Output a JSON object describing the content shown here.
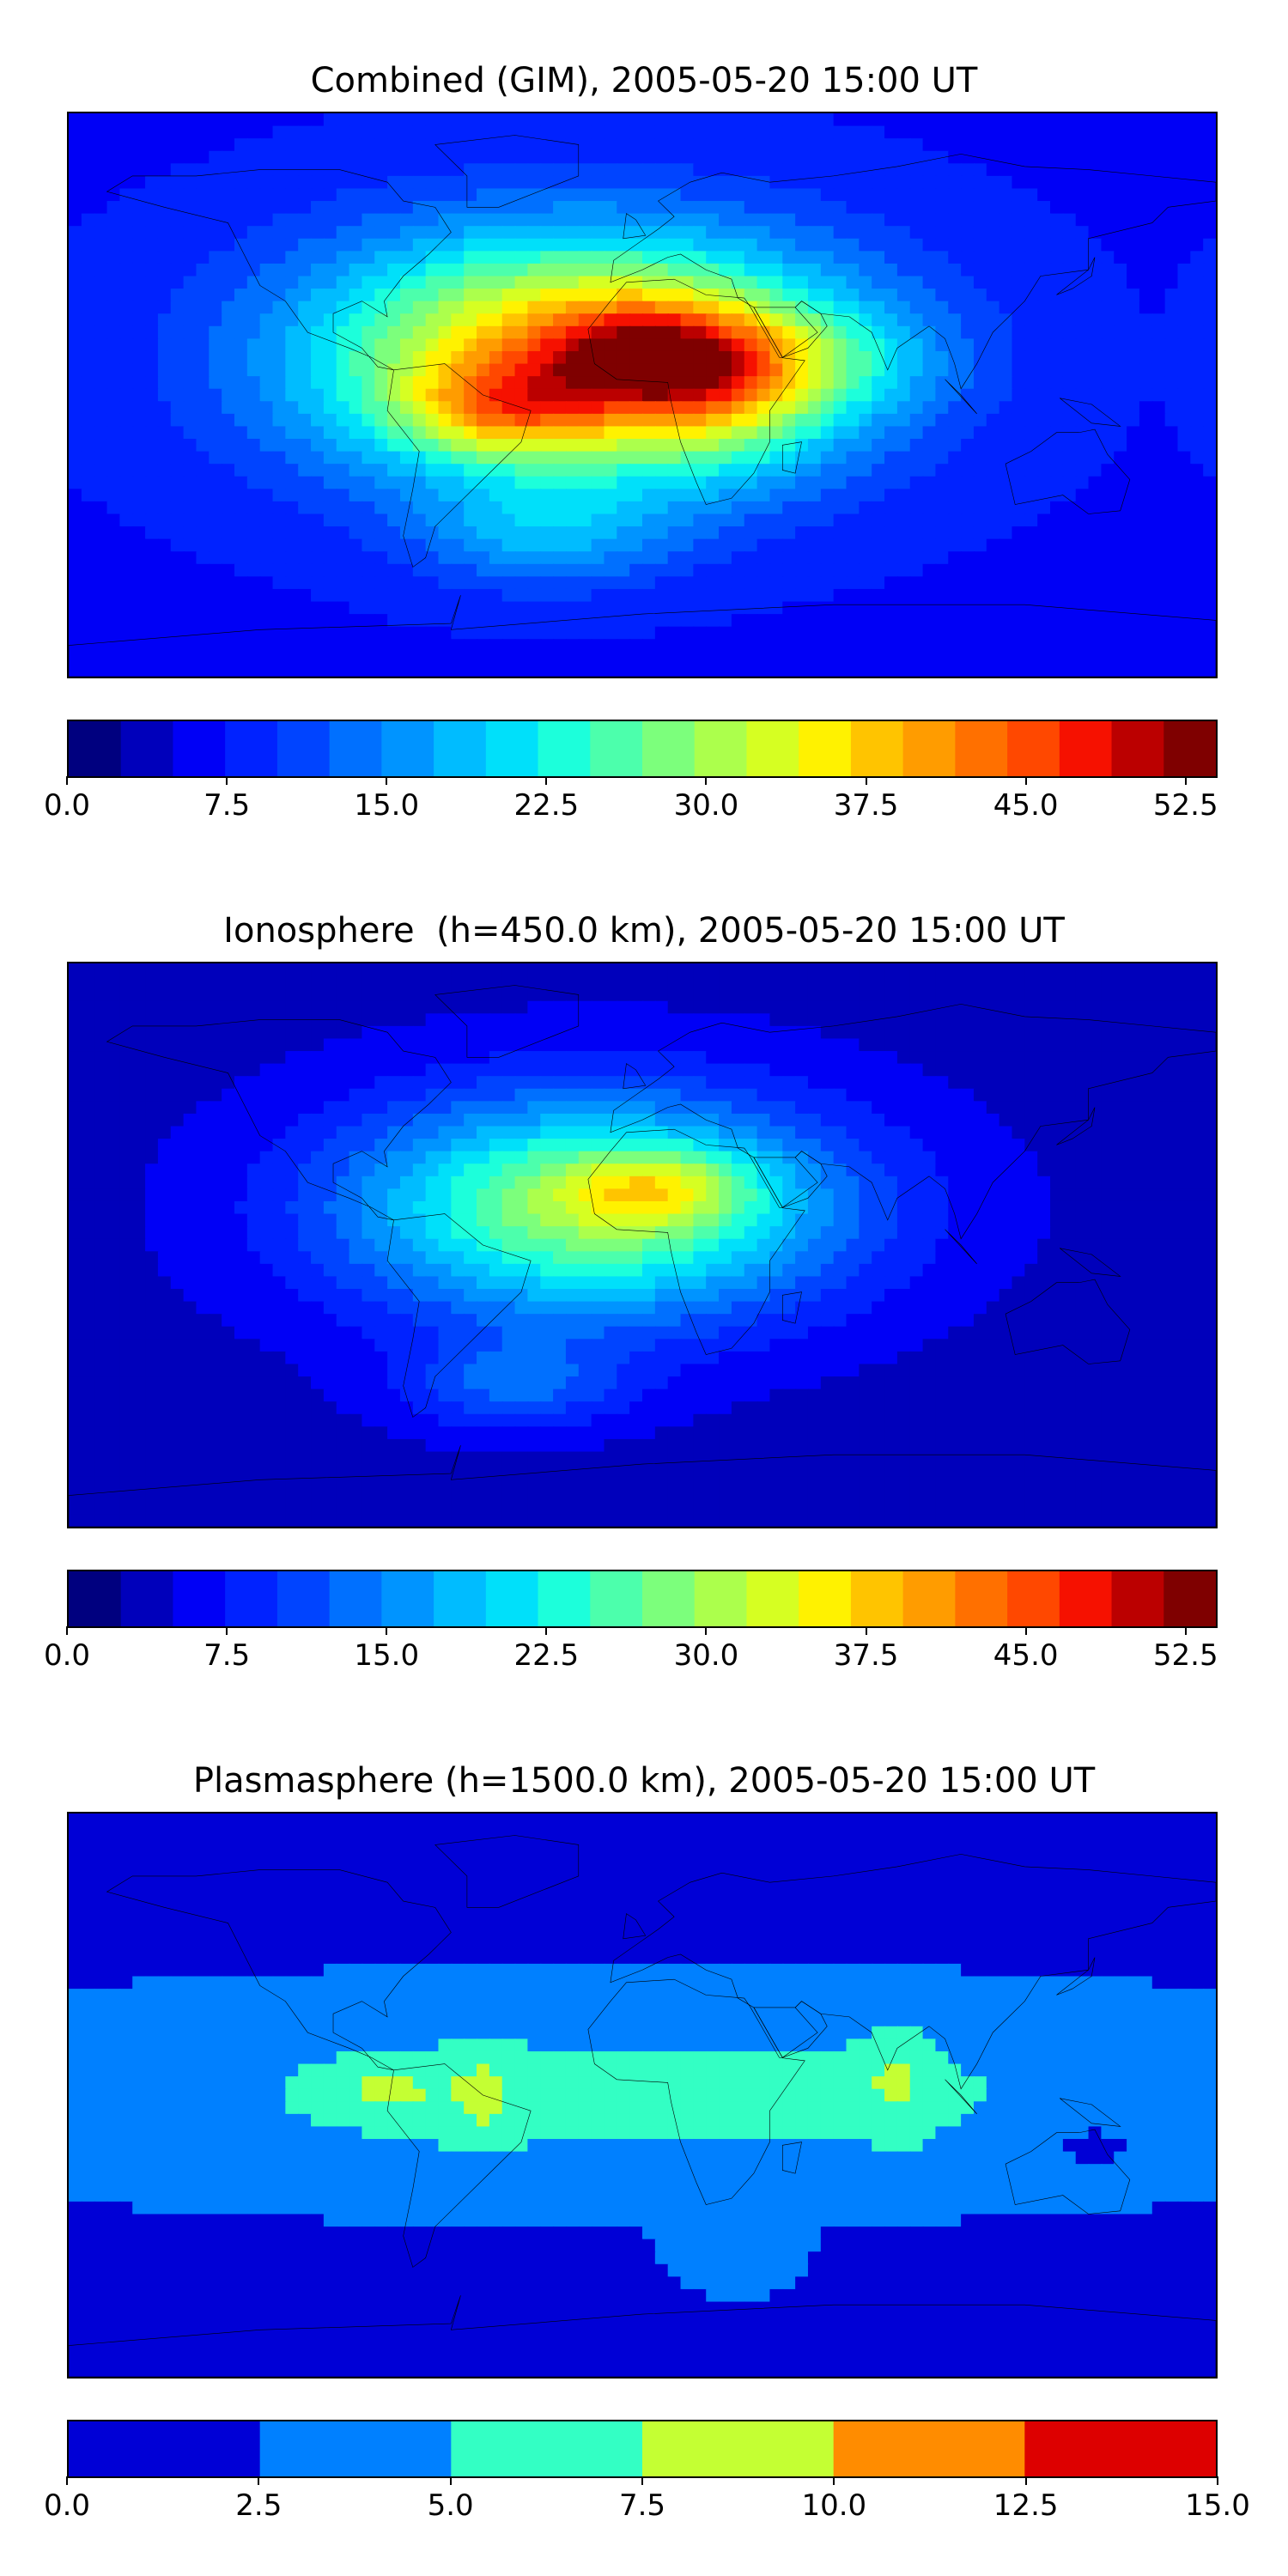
{
  "chart_data": [
    {
      "type": "heatmap",
      "title": "Combined (GIM), 2005-05-20 15:00 UT",
      "colorbar": {
        "ticks": [
          "0.0",
          "7.5",
          "15.0",
          "22.5",
          "30.0",
          "37.5",
          "45.0",
          "52.5"
        ],
        "range": [
          0,
          54
        ],
        "levels": 22,
        "colors": [
          "#00007f",
          "#0000bb",
          "#0000f6",
          "#0022ff",
          "#0044ff",
          "#0070ff",
          "#0094ff",
          "#00bcff",
          "#00e0fa",
          "#1cffdb",
          "#4cffac",
          "#7cff7c",
          "#acff4c",
          "#d6ff22",
          "#fff200",
          "#ffc400",
          "#ff9c00",
          "#ff7000",
          "#ff4800",
          "#f61100",
          "#bb0000",
          "#7f0000"
        ]
      },
      "field_blobs": [
        {
          "lon": -20,
          "lat": 12,
          "sx": 60,
          "sy": 28,
          "value": 34
        },
        {
          "lon": 5,
          "lat": 12,
          "sx": 25,
          "sy": 12,
          "value": 16
        },
        {
          "lon": -45,
          "lat": -5,
          "sx": 22,
          "sy": 10,
          "value": 12
        },
        {
          "lon": 25,
          "lat": 0,
          "sx": 22,
          "sy": 18,
          "value": 8
        },
        {
          "lon": -30,
          "lat": -45,
          "sx": 28,
          "sy": 12,
          "value": 8
        },
        {
          "lon": 60,
          "lat": 10,
          "sx": 25,
          "sy": 12,
          "value": 6
        }
      ],
      "background": 7
    },
    {
      "type": "heatmap",
      "title": "Ionosphere  (h=450.0 km), 2005-05-20 15:00 UT",
      "colorbar": {
        "ticks": [
          "0.0",
          "7.5",
          "15.0",
          "22.5",
          "30.0",
          "37.5",
          "45.0",
          "52.5"
        ],
        "range": [
          0,
          54
        ],
        "levels": 22,
        "colors": [
          "#00007f",
          "#0000bb",
          "#0000f6",
          "#0022ff",
          "#0044ff",
          "#0070ff",
          "#0094ff",
          "#00bcff",
          "#00e0fa",
          "#1cffdb",
          "#4cffac",
          "#7cff7c",
          "#acff4c",
          "#d6ff22",
          "#fff200",
          "#ffc400",
          "#ff9c00",
          "#ff7000",
          "#ff4800",
          "#f61100",
          "#bb0000",
          "#7f0000"
        ]
      },
      "field_blobs": [
        {
          "lon": -15,
          "lat": 12,
          "sx": 55,
          "sy": 25,
          "value": 26
        },
        {
          "lon": 5,
          "lat": 18,
          "sx": 20,
          "sy": 8,
          "value": 10
        },
        {
          "lon": -40,
          "lat": -45,
          "sx": 25,
          "sy": 10,
          "value": 8
        }
      ],
      "background": 4
    },
    {
      "type": "heatmap",
      "title": "Plasmasphere (h=1500.0 km), 2005-05-20 15:00 UT",
      "colorbar": {
        "ticks": [
          "0.0",
          "2.5",
          "5.0",
          "7.5",
          "10.0",
          "12.5",
          "15.0"
        ],
        "range": [
          0,
          15
        ],
        "levels": 6,
        "colors": [
          "#0000d6",
          "#0080ff",
          "#33ffc4",
          "#c4ff33",
          "#ff8c00",
          "#dd0000"
        ]
      },
      "field_blobs": [
        {
          "lon": 0,
          "lat": 0,
          "sx": 180,
          "sy": 25,
          "value": 4.2
        },
        {
          "lon": -80,
          "lat": 2,
          "sx": 12,
          "sy": 6,
          "value": 3
        },
        {
          "lon": -50,
          "lat": 0,
          "sx": 8,
          "sy": 10,
          "value": 3
        },
        {
          "lon": 80,
          "lat": 5,
          "sx": 8,
          "sy": 12,
          "value": 3
        },
        {
          "lon": 30,
          "lat": -55,
          "sx": 15,
          "sy": 8,
          "value": 2
        },
        {
          "lon": 140,
          "lat": -15,
          "sx": 15,
          "sy": 6,
          "value": -2
        }
      ],
      "background": 1.5
    }
  ]
}
